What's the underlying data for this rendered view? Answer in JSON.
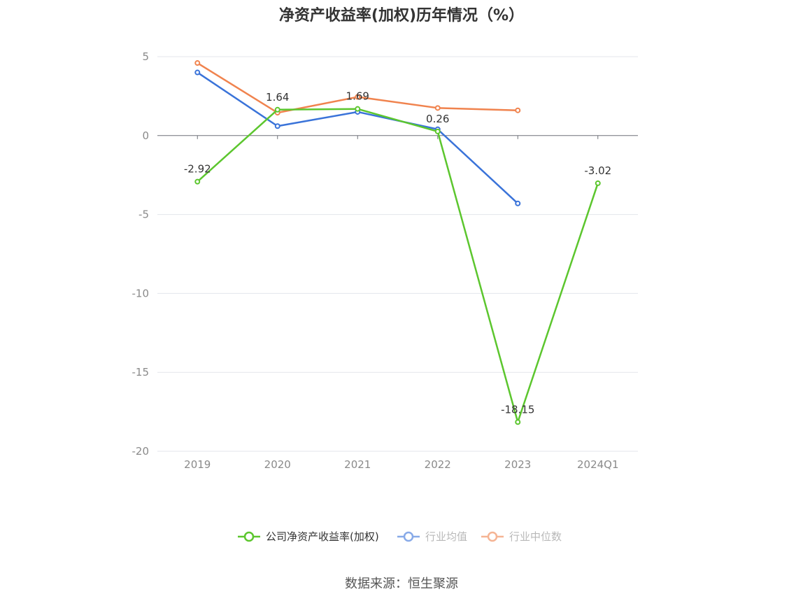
{
  "chart_data": {
    "type": "line",
    "title": "净资产收益率(加权)历年情况（%）",
    "categories": [
      "2019",
      "2020",
      "2021",
      "2022",
      "2023",
      "2024Q1"
    ],
    "ylim": [
      -20,
      5
    ],
    "yticks": [
      5,
      0,
      -5,
      -10,
      -15,
      -20
    ],
    "grid": true,
    "legend_position": "bottom",
    "series": [
      {
        "name": "公司净资产收益率(加权)",
        "color": "#5cc62e",
        "values": [
          -2.92,
          1.64,
          1.69,
          0.26,
          -18.15,
          -3.02
        ],
        "labels": [
          "-2.92",
          "1.64",
          "1.69",
          "0.26",
          "-18.15",
          "-3.02"
        ]
      },
      {
        "name": "行业均值",
        "color": "#3a73d9",
        "values": [
          4.0,
          0.6,
          1.5,
          0.4,
          -4.3,
          null
        ]
      },
      {
        "name": "行业中位数",
        "color": "#f0834e",
        "values": [
          4.6,
          1.45,
          2.45,
          1.75,
          1.6,
          null
        ]
      }
    ]
  },
  "source": "数据来源：恒生聚源"
}
